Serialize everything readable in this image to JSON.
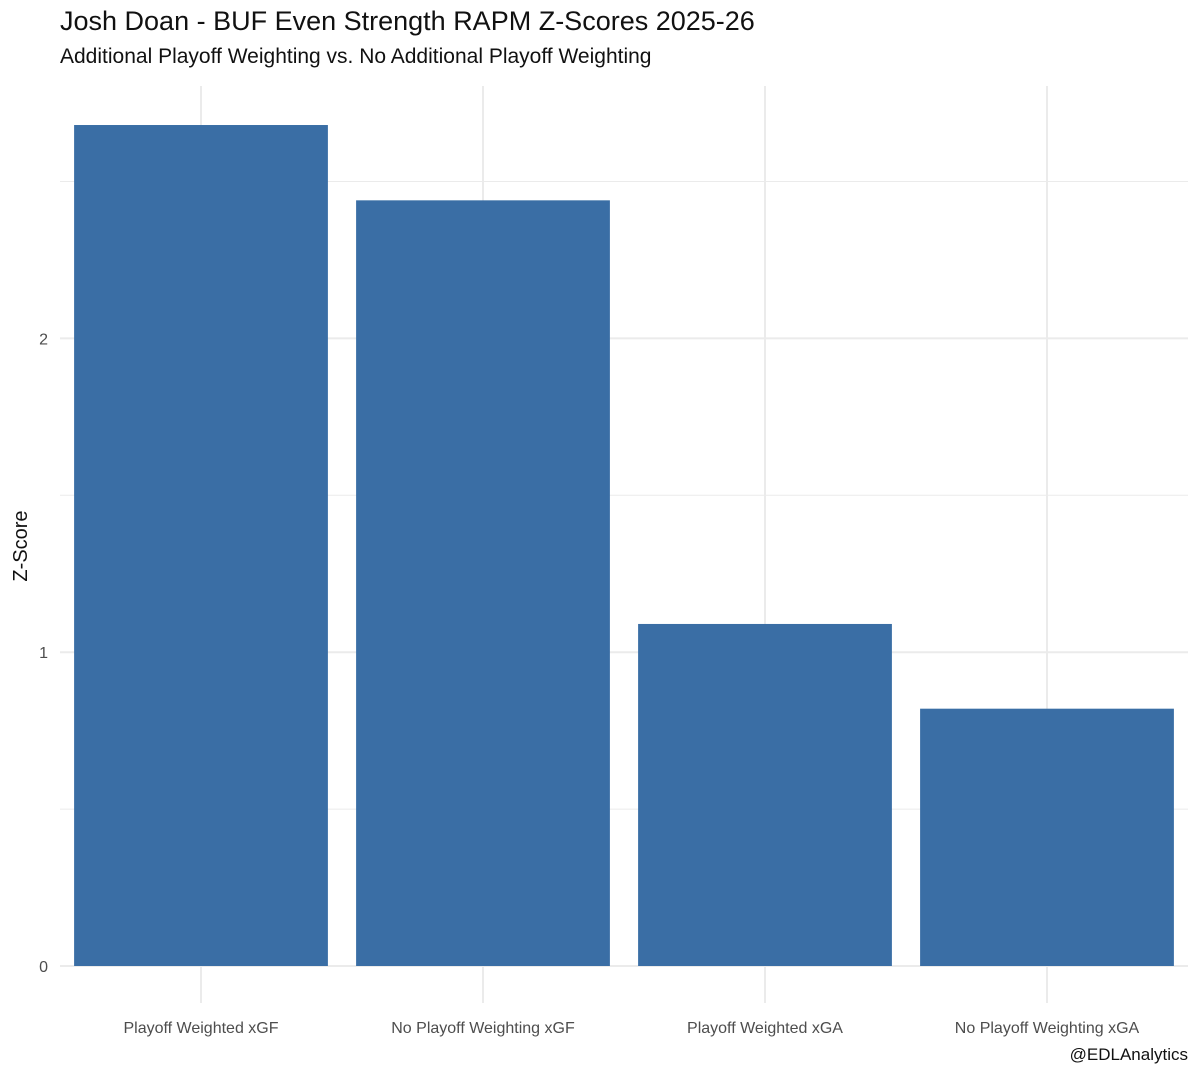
{
  "chart_data": {
    "type": "bar",
    "title": "Josh Doan - BUF Even Strength RAPM Z-Scores 2025-26",
    "subtitle": "Additional Playoff Weighting vs. No Additional Playoff Weighting",
    "xlabel": "",
    "ylabel": "Z-Score",
    "caption": "@EDLAnalytics",
    "categories": [
      "Playoff Weighted xGF",
      "No Playoff Weighting xGF",
      "Playoff Weighted xGA",
      "No Playoff Weighting xGA"
    ],
    "values": [
      2.68,
      2.44,
      1.09,
      0.82
    ],
    "ylim": [
      0,
      2.81
    ],
    "y_ticks": [
      0,
      1,
      2
    ],
    "y_tick_labels": [
      "0",
      "1",
      "2"
    ],
    "grid": true,
    "bar_color": "#3a6ea5",
    "grid_color": "#ebebeb"
  }
}
